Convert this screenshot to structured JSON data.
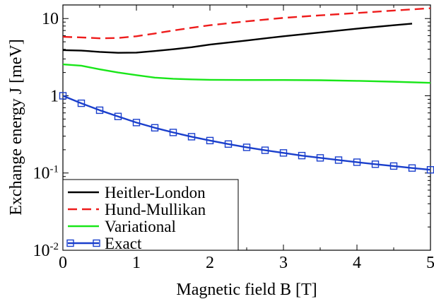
{
  "chart_data": {
    "type": "line",
    "xlabel": "Magnetic field B [T]",
    "ylabel": "Exchange energy J [meV]",
    "xlim": [
      0,
      5
    ],
    "ylim": [
      0.01,
      15
    ],
    "yscale": "log",
    "grid": false,
    "legend_position": "bottom-left",
    "x_ticks": [
      "0",
      "1",
      "2",
      "3",
      "4",
      "5"
    ],
    "y_ticks": [
      {
        "value": 0.01,
        "base": "10",
        "exp": "-2"
      },
      {
        "value": 0.1,
        "base": "10",
        "exp": "-1"
      },
      {
        "value": 1,
        "base": "1",
        "exp": ""
      },
      {
        "value": 10,
        "base": "10",
        "exp": ""
      }
    ],
    "series": [
      {
        "name": "Heitler-London",
        "color": "#000000",
        "dash": "solid",
        "marker": "none",
        "x": [
          0,
          0.25,
          0.5,
          0.75,
          1.0,
          1.25,
          1.5,
          1.75,
          2.0,
          2.5,
          3.0,
          3.5,
          4.0,
          4.5,
          4.75
        ],
        "y": [
          3.9,
          3.85,
          3.7,
          3.6,
          3.62,
          3.8,
          4.0,
          4.25,
          4.6,
          5.2,
          5.9,
          6.6,
          7.4,
          8.2,
          8.6
        ]
      },
      {
        "name": "Hund-Mullikan",
        "color": "#ee1c1c",
        "dash": "dashed",
        "marker": "none",
        "x": [
          0,
          0.25,
          0.5,
          0.75,
          1.0,
          1.25,
          1.5,
          1.75,
          2.0,
          2.5,
          3.0,
          3.5,
          4.0,
          4.5,
          5.0
        ],
        "y": [
          5.8,
          5.7,
          5.55,
          5.6,
          5.9,
          6.4,
          7.0,
          7.6,
          8.2,
          9.2,
          10.2,
          11.0,
          11.8,
          12.7,
          13.6
        ]
      },
      {
        "name": "Variational",
        "color": "#19e619",
        "dash": "solid",
        "marker": "none",
        "x": [
          0,
          0.25,
          0.5,
          0.75,
          1.0,
          1.25,
          1.5,
          1.75,
          2.0,
          2.5,
          3.0,
          3.5,
          4.0,
          4.5,
          5.0
        ],
        "y": [
          2.55,
          2.45,
          2.2,
          2.0,
          1.85,
          1.72,
          1.66,
          1.63,
          1.61,
          1.6,
          1.6,
          1.59,
          1.56,
          1.52,
          1.47
        ]
      },
      {
        "name": "Exact",
        "color": "#1a3fcc",
        "dash": "solid",
        "marker": "open-square",
        "x": [
          0,
          0.25,
          0.5,
          0.75,
          1.0,
          1.25,
          1.5,
          1.75,
          2.0,
          2.25,
          2.5,
          2.75,
          3.0,
          3.25,
          3.5,
          3.75,
          4.0,
          4.25,
          4.5,
          4.75,
          5.0
        ],
        "y": [
          1.0,
          0.8,
          0.65,
          0.54,
          0.45,
          0.385,
          0.335,
          0.295,
          0.263,
          0.237,
          0.215,
          0.197,
          0.182,
          0.168,
          0.157,
          0.147,
          0.138,
          0.13,
          0.123,
          0.116,
          0.11
        ]
      }
    ]
  }
}
